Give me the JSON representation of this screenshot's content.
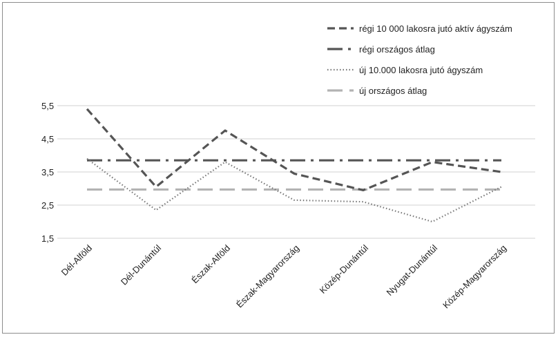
{
  "chart_data": {
    "type": "line",
    "categories": [
      "Dél-Alföld",
      "Dél-Dunántúl",
      "Észak-Alföld",
      "Észak-Magyarország",
      "Közép-Dunántúl",
      "Nyugat-Dunántúl",
      "Közép-Magyarország"
    ],
    "series": [
      {
        "name": "régi 10 000 lakosra jutó aktív ágyszám",
        "values": [
          5.4,
          3.05,
          4.75,
          3.45,
          2.95,
          3.8,
          3.5
        ],
        "color": "#555555",
        "style": "dashed"
      },
      {
        "name": "régi országos átlag",
        "values": [
          3.85,
          3.85,
          3.85,
          3.85,
          3.85,
          3.85,
          3.85
        ],
        "color": "#555555",
        "style": "dash-dot"
      },
      {
        "name": "új 10.000 lakosra jutó ágyszám",
        "values": [
          3.9,
          2.35,
          3.8,
          2.65,
          2.6,
          2.0,
          3.05
        ],
        "color": "#777777",
        "style": "dotted"
      },
      {
        "name": "új országos átlag",
        "values": [
          2.97,
          2.97,
          2.97,
          2.97,
          2.97,
          2.97,
          2.97
        ],
        "color": "#b3b3b3",
        "style": "long-dash"
      }
    ],
    "yticks": [
      "5,5",
      "4,5",
      "3,5",
      "2,5",
      "1,5"
    ],
    "ytick_values": [
      5.5,
      4.5,
      3.5,
      2.5,
      1.5
    ],
    "ylim": [
      1.5,
      5.5
    ],
    "title": "",
    "xlabel": "",
    "ylabel": "",
    "grid": true,
    "legend_position": "top-right"
  }
}
